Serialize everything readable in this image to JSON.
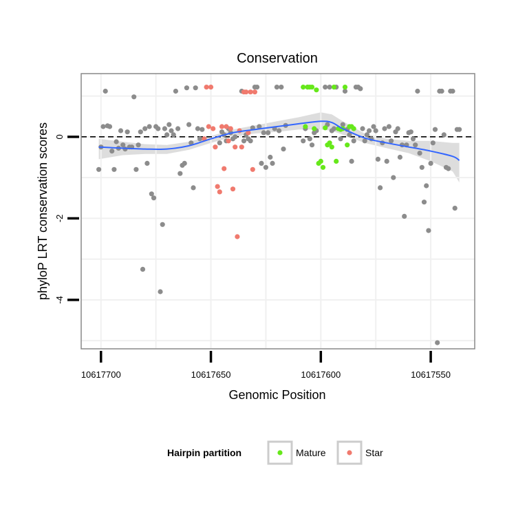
{
  "chart_data": {
    "type": "scatter",
    "title": "Conservation",
    "xlabel": "Genomic Position",
    "ylabel": "phyloP LRT conservation scores",
    "x_reversed": true,
    "xlim": [
      10617709,
      10617530
    ],
    "ylim": [
      -5.2,
      1.55
    ],
    "x_ticks": [
      10617700,
      10617650,
      10617600,
      10617550
    ],
    "x_tick_labels": [
      "10617700",
      "10617650",
      "10617600",
      "10617550"
    ],
    "y_ticks": [
      0,
      -2,
      -4
    ],
    "y_tick_labels": [
      "0",
      "-2",
      "-4"
    ],
    "reference_line": {
      "y": 0,
      "style": "dashed"
    },
    "colors": {
      "unassigned": "#8c8c8c",
      "Mature": "#66e81a",
      "Star": "#f07a6e",
      "smooth": "#3366ff",
      "ribbon": "#d9d9d9",
      "panel_border": "#888888",
      "grid": "#f0f0f0"
    },
    "legend": {
      "title": "Hairpin partition",
      "position": "bottom",
      "entries": [
        "Mature",
        "Star"
      ]
    },
    "series": [
      {
        "name": "unassigned",
        "points": [
          [
            10617701,
            -0.8
          ],
          [
            10617700,
            -0.25
          ],
          [
            10617699,
            0.25
          ],
          [
            10617698,
            1.12
          ],
          [
            10617697,
            0.27
          ],
          [
            10617696,
            0.25
          ],
          [
            10617695,
            -0.35
          ],
          [
            10617694,
            -0.8
          ],
          [
            10617693,
            -0.12
          ],
          [
            10617692,
            -0.28
          ],
          [
            10617691,
            0.15
          ],
          [
            10617690,
            -0.2
          ],
          [
            10617689,
            -0.3
          ],
          [
            10617688,
            0.12
          ],
          [
            10617687,
            -0.25
          ],
          [
            10617686,
            -0.25
          ],
          [
            10617685,
            0.98
          ],
          [
            10617684,
            -0.8
          ],
          [
            10617683,
            -0.2
          ],
          [
            10617682,
            0.12
          ],
          [
            10617681,
            -3.25
          ],
          [
            10617680,
            0.2
          ],
          [
            10617679,
            -0.65
          ],
          [
            10617678,
            0.25
          ],
          [
            10617677,
            -1.4
          ],
          [
            10617676,
            -1.5
          ],
          [
            10617675,
            0.25
          ],
          [
            10617674,
            0.2
          ],
          [
            10617673,
            -3.8
          ],
          [
            10617672,
            -2.15
          ],
          [
            10617671,
            0.2
          ],
          [
            10617670,
            0.05
          ],
          [
            10617669,
            0.3
          ],
          [
            10617668,
            0.15
          ],
          [
            10617667,
            0.05
          ],
          [
            10617666,
            1.12
          ],
          [
            10617665,
            0.2
          ],
          [
            10617664,
            -0.9
          ],
          [
            10617663,
            -0.7
          ],
          [
            10617662,
            -0.65
          ],
          [
            10617661,
            1.2
          ],
          [
            10617660,
            0.3
          ],
          [
            10617659,
            -0.15
          ],
          [
            10617658,
            -1.25
          ],
          [
            10617657,
            1.2
          ],
          [
            10617656,
            0.2
          ],
          [
            10617655,
            -0.05
          ],
          [
            10617654,
            0.18
          ],
          [
            10617646,
            -0.15
          ],
          [
            10617645,
            0.12
          ],
          [
            10617644,
            0.05
          ],
          [
            10617643,
            -0.1
          ],
          [
            10617642,
            0.2
          ],
          [
            10617641,
            0.1
          ],
          [
            10617640,
            -0.05
          ],
          [
            10617639,
            0.0
          ],
          [
            10617636,
            1.12
          ],
          [
            10617635,
            -0.1
          ],
          [
            10617634,
            0.05
          ],
          [
            10617633,
            -0.05
          ],
          [
            10617632,
            -0.1
          ],
          [
            10617631,
            0.22
          ],
          [
            10617630,
            1.22
          ],
          [
            10617629,
            1.22
          ],
          [
            10617628,
            0.25
          ],
          [
            10617627,
            -0.65
          ],
          [
            10617626,
            0.1
          ],
          [
            10617625,
            -0.75
          ],
          [
            10617624,
            0.1
          ],
          [
            10617623,
            -0.5
          ],
          [
            10617622,
            -0.65
          ],
          [
            10617621,
            0.2
          ],
          [
            10617620,
            1.22
          ],
          [
            10617619,
            0.15
          ],
          [
            10617618,
            1.22
          ],
          [
            10617617,
            -0.3
          ],
          [
            10617616,
            0.28
          ],
          [
            10617608,
            -0.1
          ],
          [
            10617607,
            0.2
          ],
          [
            10617606,
            1.22
          ],
          [
            10617605,
            -0.05
          ],
          [
            10617604,
            -0.2
          ],
          [
            10617603,
            0.1
          ],
          [
            10617602,
            0.15
          ],
          [
            10617598,
            1.22
          ],
          [
            10617597,
            0.3
          ],
          [
            10617596,
            1.22
          ],
          [
            10617595,
            0.15
          ],
          [
            10617594,
            0.2
          ],
          [
            10617593,
            1.22
          ],
          [
            10617592,
            0.2
          ],
          [
            10617591,
            -0.05
          ],
          [
            10617590,
            0.3
          ],
          [
            10617589,
            1.12
          ],
          [
            10617588,
            0.18
          ],
          [
            10617587,
            0.05
          ],
          [
            10617586,
            -0.6
          ],
          [
            10617585,
            -0.1
          ],
          [
            10617584,
            1.22
          ],
          [
            10617583,
            1.22
          ],
          [
            10617582,
            1.18
          ],
          [
            10617581,
            0.2
          ],
          [
            10617580,
            -0.1
          ],
          [
            10617579,
            0.05
          ],
          [
            10617578,
            0.15
          ],
          [
            10617577,
            -0.05
          ],
          [
            10617576,
            0.25
          ],
          [
            10617575,
            0.15
          ],
          [
            10617574,
            -0.55
          ],
          [
            10617573,
            -1.25
          ],
          [
            10617572,
            -0.15
          ],
          [
            10617571,
            0.2
          ],
          [
            10617570,
            -0.6
          ],
          [
            10617569,
            0.25
          ],
          [
            10617568,
            -0.1
          ],
          [
            10617567,
            -1.0
          ],
          [
            10617566,
            0.12
          ],
          [
            10617565,
            0.2
          ],
          [
            10617564,
            -0.5
          ],
          [
            10617563,
            -0.2
          ],
          [
            10617562,
            -1.95
          ],
          [
            10617561,
            -0.2
          ],
          [
            10617560,
            0.1
          ],
          [
            10617559,
            0.12
          ],
          [
            10617558,
            -0.05
          ],
          [
            10617557,
            -0.2
          ],
          [
            10617556,
            1.12
          ],
          [
            10617555,
            -0.4
          ],
          [
            10617554,
            -0.75
          ],
          [
            10617553,
            -1.6
          ],
          [
            10617552,
            -1.2
          ],
          [
            10617551,
            -2.3
          ],
          [
            10617550,
            -0.65
          ],
          [
            10617549,
            -0.15
          ],
          [
            10617548,
            0.18
          ],
          [
            10617547,
            -5.05
          ],
          [
            10617546,
            1.12
          ],
          [
            10617545,
            1.12
          ],
          [
            10617544,
            0.05
          ],
          [
            10617543,
            -0.75
          ],
          [
            10617542,
            -0.78
          ],
          [
            10617541,
            1.12
          ],
          [
            10617540,
            1.12
          ],
          [
            10617539,
            -1.75
          ],
          [
            10617538,
            0.18
          ],
          [
            10617537,
            0.18
          ]
        ]
      },
      {
        "name": "Star",
        "points": [
          [
            10617653,
            -0.05
          ],
          [
            10617652,
            1.22
          ],
          [
            10617651,
            0.25
          ],
          [
            10617650,
            1.22
          ],
          [
            10617649,
            0.2
          ],
          [
            10617648,
            -0.25
          ],
          [
            10617647,
            -1.22
          ],
          [
            10617646,
            -1.35
          ],
          [
            10617645,
            0.25
          ],
          [
            10617644,
            -0.78
          ],
          [
            10617643,
            0.25
          ],
          [
            10617642,
            -0.1
          ],
          [
            10617641,
            0.2
          ],
          [
            10617640,
            -1.28
          ],
          [
            10617639,
            -0.25
          ],
          [
            10617638,
            -2.45
          ],
          [
            10617637,
            0.15
          ],
          [
            10617636,
            -0.25
          ],
          [
            10617635,
            1.1
          ],
          [
            10617634,
            1.1
          ],
          [
            10617633,
            0.1
          ],
          [
            10617632,
            1.1
          ],
          [
            10617631,
            -0.8
          ],
          [
            10617630,
            1.1
          ]
        ]
      },
      {
        "name": "Mature",
        "points": [
          [
            10617608,
            1.22
          ],
          [
            10617607,
            0.25
          ],
          [
            10617606,
            1.22
          ],
          [
            10617605,
            1.22
          ],
          [
            10617604,
            1.22
          ],
          [
            10617603,
            0.2
          ],
          [
            10617602,
            1.15
          ],
          [
            10617601,
            -0.65
          ],
          [
            10617600,
            -0.6
          ],
          [
            10617599,
            -0.75
          ],
          [
            10617598,
            0.22
          ],
          [
            10617597,
            -0.2
          ],
          [
            10617596,
            -0.15
          ],
          [
            10617595,
            -0.25
          ],
          [
            10617594,
            1.22
          ],
          [
            10617593,
            -0.6
          ],
          [
            10617592,
            0.2
          ],
          [
            10617591,
            0.18
          ],
          [
            10617590,
            0.2
          ],
          [
            10617589,
            1.22
          ],
          [
            10617588,
            -0.2
          ],
          [
            10617587,
            0.25
          ],
          [
            10617586,
            0.25
          ],
          [
            10617585,
            0.2
          ]
        ]
      }
    ],
    "smooth": {
      "x": [
        10617701,
        10617690,
        10617680,
        10617670,
        10617660,
        10617650,
        10617640,
        10617630,
        10617620,
        10617610,
        10617600,
        10617595,
        10617590,
        10617580,
        10617570,
        10617560,
        10617550,
        10617540,
        10617537
      ],
      "y": [
        -0.25,
        -0.28,
        -0.3,
        -0.3,
        -0.22,
        -0.05,
        0.1,
        0.18,
        0.25,
        0.32,
        0.38,
        0.35,
        0.2,
        -0.03,
        -0.15,
        -0.25,
        -0.35,
        -0.48,
        -0.58
      ],
      "upper": [
        -0.05,
        -0.12,
        -0.18,
        -0.2,
        -0.12,
        0.02,
        0.18,
        0.28,
        0.38,
        0.48,
        0.6,
        0.55,
        0.38,
        0.08,
        -0.05,
        -0.1,
        -0.1,
        -0.15,
        -0.15
      ],
      "lower": [
        -0.55,
        -0.45,
        -0.42,
        -0.42,
        -0.32,
        -0.15,
        0.0,
        0.08,
        0.12,
        0.18,
        0.18,
        0.15,
        0.05,
        -0.15,
        -0.28,
        -0.4,
        -0.6,
        -0.85,
        -1.12
      ]
    }
  }
}
